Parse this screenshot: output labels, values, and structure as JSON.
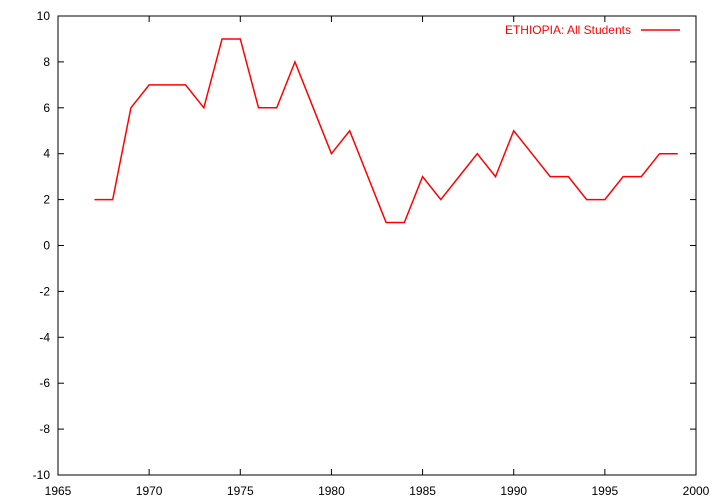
{
  "chart_data": {
    "type": "line",
    "title": "",
    "xlabel": "",
    "ylabel": "",
    "xlim": [
      1965,
      2000
    ],
    "ylim": [
      -10,
      10
    ],
    "xticks": [
      1965,
      1970,
      1975,
      1980,
      1985,
      1990,
      1995,
      2000
    ],
    "yticks": [
      -10,
      -8,
      -6,
      -4,
      -2,
      0,
      2,
      4,
      6,
      8,
      10
    ],
    "grid": false,
    "legend_position": "top-right",
    "series": [
      {
        "name": "ETHIOPIA: All Students",
        "color": "#ff0000",
        "x": [
          1967,
          1968,
          1969,
          1970,
          1971,
          1972,
          1973,
          1974,
          1975,
          1976,
          1977,
          1978,
          1979,
          1980,
          1981,
          1982,
          1983,
          1984,
          1985,
          1986,
          1987,
          1988,
          1989,
          1990,
          1991,
          1992,
          1993,
          1994,
          1995,
          1996,
          1997,
          1998,
          1999
        ],
        "y": [
          2,
          2,
          6,
          7,
          7,
          7,
          6,
          9,
          9,
          6,
          6,
          8,
          6,
          4,
          5,
          3,
          1,
          1,
          3,
          2,
          3,
          4,
          3,
          5,
          4,
          3,
          3,
          2,
          2,
          3,
          3,
          4,
          4
        ]
      }
    ]
  }
}
